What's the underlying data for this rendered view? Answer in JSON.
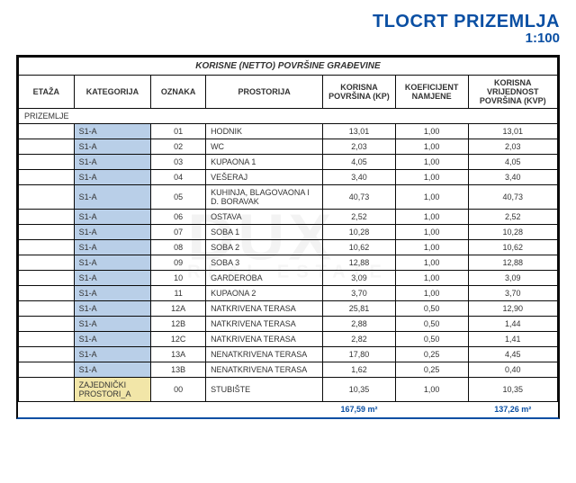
{
  "title": {
    "main": "TLOCRT PRIZEMLJA",
    "sub": "1:100",
    "color": "#0a4fa3"
  },
  "watermark": {
    "big": "DUX",
    "small": "REAL  ESTATE"
  },
  "table": {
    "super_header": "KORISNE (NETTO) POVRŠINE GRAĐEVINE",
    "columns": [
      "ETAŽA",
      "KATEGORIJA",
      "OZNAKA",
      "PROSTORIJA",
      "KORISNA POVRŠINA (KP)",
      "KOEFICIJENT NAMJENE",
      "KORISNA VRIJEDNOST POVRŠINA (KVP)"
    ],
    "etaza": "PRIZEMLJE",
    "rows": [
      {
        "kat": "S1-A",
        "kat_bg": "#b9cfe8",
        "ozn": "01",
        "pros": "HODNIK",
        "kp": "13,01",
        "koef": "1,00",
        "kvp": "13,01"
      },
      {
        "kat": "S1-A",
        "kat_bg": "#b9cfe8",
        "ozn": "02",
        "pros": "WC",
        "kp": "2,03",
        "koef": "1,00",
        "kvp": "2,03"
      },
      {
        "kat": "S1-A",
        "kat_bg": "#b9cfe8",
        "ozn": "03",
        "pros": "KUPAONA 1",
        "kp": "4,05",
        "koef": "1,00",
        "kvp": "4,05"
      },
      {
        "kat": "S1-A",
        "kat_bg": "#b9cfe8",
        "ozn": "04",
        "pros": "VEŠERAJ",
        "kp": "3,40",
        "koef": "1,00",
        "kvp": "3,40"
      },
      {
        "kat": "S1-A",
        "kat_bg": "#b9cfe8",
        "ozn": "05",
        "pros": "KUHINJA, BLAGOVAONA I D. BORAVAK",
        "kp": "40,73",
        "koef": "1,00",
        "kvp": "40,73"
      },
      {
        "kat": "S1-A",
        "kat_bg": "#b9cfe8",
        "ozn": "06",
        "pros": "OSTAVA",
        "kp": "2,52",
        "koef": "1,00",
        "kvp": "2,52"
      },
      {
        "kat": "S1-A",
        "kat_bg": "#b9cfe8",
        "ozn": "07",
        "pros": "SOBA 1",
        "kp": "10,28",
        "koef": "1,00",
        "kvp": "10,28"
      },
      {
        "kat": "S1-A",
        "kat_bg": "#b9cfe8",
        "ozn": "08",
        "pros": "SOBA 2",
        "kp": "10,62",
        "koef": "1,00",
        "kvp": "10,62"
      },
      {
        "kat": "S1-A",
        "kat_bg": "#b9cfe8",
        "ozn": "09",
        "pros": "SOBA 3",
        "kp": "12,88",
        "koef": "1,00",
        "kvp": "12,88"
      },
      {
        "kat": "S1-A",
        "kat_bg": "#b9cfe8",
        "ozn": "10",
        "pros": "GARDEROBA",
        "kp": "3,09",
        "koef": "1,00",
        "kvp": "3,09"
      },
      {
        "kat": "S1-A",
        "kat_bg": "#b9cfe8",
        "ozn": "11",
        "pros": "KUPAONA 2",
        "kp": "3,70",
        "koef": "1,00",
        "kvp": "3,70"
      },
      {
        "kat": "S1-A",
        "kat_bg": "#b9cfe8",
        "ozn": "12A",
        "pros": "NATKRIVENA TERASA",
        "kp": "25,81",
        "koef": "0,50",
        "kvp": "12,90"
      },
      {
        "kat": "S1-A",
        "kat_bg": "#b9cfe8",
        "ozn": "12B",
        "pros": "NATKRIVENA TERASA",
        "kp": "2,88",
        "koef": "0,50",
        "kvp": "1,44"
      },
      {
        "kat": "S1-A",
        "kat_bg": "#b9cfe8",
        "ozn": "12C",
        "pros": "NATKRIVENA TERASA",
        "kp": "2,82",
        "koef": "0,50",
        "kvp": "1,41"
      },
      {
        "kat": "S1-A",
        "kat_bg": "#b9cfe8",
        "ozn": "13A",
        "pros": "NENATKRIVENA TERASA",
        "kp": "17,80",
        "koef": "0,25",
        "kvp": "4,45"
      },
      {
        "kat": "S1-A",
        "kat_bg": "#b9cfe8",
        "ozn": "13B",
        "pros": "NENATKRIVENA TERASA",
        "kp": "1,62",
        "koef": "0,25",
        "kvp": "0,40"
      },
      {
        "kat": "ZAJEDNIČKI PROSTORI_A",
        "kat_bg": "#f2e6a8",
        "ozn": "00",
        "pros": "STUBIŠTE",
        "kp": "10,35",
        "koef": "1,00",
        "kvp": "10,35"
      }
    ],
    "totals": {
      "kp": "167,59 m²",
      "kvp": "137,26 m²",
      "color": "#0a4fa3"
    }
  }
}
